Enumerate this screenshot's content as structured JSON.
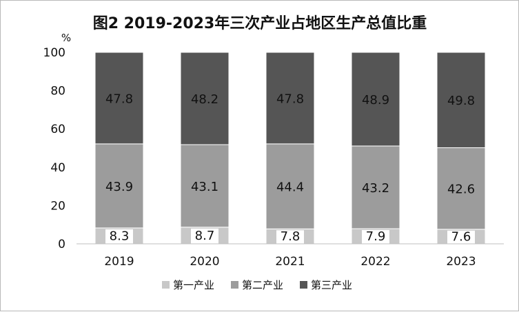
{
  "chart_data": {
    "type": "bar",
    "stacked": true,
    "title": "图2  2019-2023年三次产业占地区生产总值比重",
    "ylabel": "%",
    "xlabel": "",
    "ylim": [
      0,
      100
    ],
    "yticks": [
      0,
      20,
      40,
      60,
      80,
      100
    ],
    "grid": false,
    "legend_position": "bottom",
    "categories": [
      "2019",
      "2020",
      "2021",
      "2022",
      "2023"
    ],
    "series": [
      {
        "name": "第一产业",
        "values": [
          8.3,
          8.7,
          7.8,
          7.9,
          7.6
        ],
        "color": "#c8c8c8"
      },
      {
        "name": "第二产业",
        "values": [
          43.9,
          43.1,
          44.4,
          43.2,
          42.6
        ],
        "color": "#9c9c9c"
      },
      {
        "name": "第三产业",
        "values": [
          47.8,
          48.2,
          47.8,
          48.9,
          49.8
        ],
        "color": "#555555"
      }
    ]
  }
}
